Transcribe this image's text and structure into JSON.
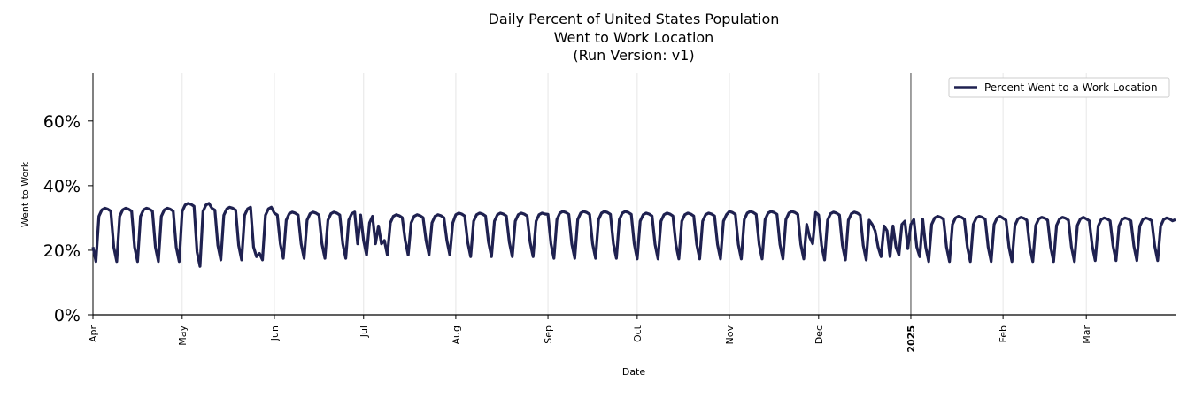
{
  "chart_data": {
    "type": "line",
    "title_lines": [
      "Daily Percent of United States Population",
      "Went to Work Location",
      "(Run Version: v1)"
    ],
    "xlabel": "Date",
    "ylabel": "Went to Work",
    "ylim": [
      0,
      75
    ],
    "yticks": [
      0,
      20,
      40,
      60
    ],
    "ytick_labels": [
      "0%",
      "20%",
      "40%",
      "60%"
    ],
    "x_range_days": [
      0,
      364
    ],
    "month_ticks": [
      {
        "label": "Apr",
        "day": 0,
        "bold": false
      },
      {
        "label": "May",
        "day": 30,
        "bold": false
      },
      {
        "label": "Jun",
        "day": 61,
        "bold": false
      },
      {
        "label": "Jul",
        "day": 91,
        "bold": false
      },
      {
        "label": "Aug",
        "day": 122,
        "bold": false
      },
      {
        "label": "Sep",
        "day": 153,
        "bold": false
      },
      {
        "label": "Oct",
        "day": 183,
        "bold": false
      },
      {
        "label": "Nov",
        "day": 214,
        "bold": false
      },
      {
        "label": "Dec",
        "day": 244,
        "bold": false
      },
      {
        "label": "2025",
        "day": 275,
        "bold": true
      },
      {
        "label": "Feb",
        "day": 306,
        "bold": false
      },
      {
        "label": "Mar",
        "day": 334,
        "bold": false
      }
    ],
    "vline_day": 275,
    "grid": "vertical",
    "legend": {
      "position": "top-right",
      "label": "Percent Went to a Work Location"
    },
    "series": [
      {
        "name": "Percent Went to a Work Location",
        "color": "#1f2150",
        "weekday_levels": [
          {
            "from_day": 0,
            "value": 33.0
          },
          {
            "from_day": 30,
            "value": 34.5
          },
          {
            "from_day": 40,
            "value": 33.3
          },
          {
            "from_day": 61,
            "value": 31.8
          },
          {
            "from_day": 91,
            "value": 31.0
          },
          {
            "from_day": 122,
            "value": 31.5
          },
          {
            "from_day": 153,
            "value": 32.0
          },
          {
            "from_day": 183,
            "value": 31.5
          },
          {
            "from_day": 214,
            "value": 32.0
          },
          {
            "from_day": 244,
            "value": 31.8
          },
          {
            "from_day": 275,
            "value": 30.5
          },
          {
            "from_day": 306,
            "value": 30.2
          },
          {
            "from_day": 334,
            "value": 30.0
          }
        ],
        "weekend_min": [
          {
            "from_day": 0,
            "value": 16.5
          },
          {
            "from_day": 30,
            "value": 15.0
          },
          {
            "from_day": 40,
            "value": 17.0
          },
          {
            "from_day": 61,
            "value": 17.5
          },
          {
            "from_day": 91,
            "value": 18.5
          },
          {
            "from_day": 122,
            "value": 18.0
          },
          {
            "from_day": 153,
            "value": 17.5
          },
          {
            "from_day": 183,
            "value": 17.3
          },
          {
            "from_day": 244,
            "value": 17.0
          },
          {
            "from_day": 275,
            "value": 16.5
          },
          {
            "from_day": 306,
            "value": 16.5
          },
          {
            "from_day": 334,
            "value": 16.8
          }
        ],
        "anomalies": [
          {
            "day": 54,
            "value": 21.0
          },
          {
            "day": 55,
            "value": 18.0
          },
          {
            "day": 56,
            "value": 19.0
          },
          {
            "day": 89,
            "value": 22.0
          },
          {
            "day": 95,
            "value": 22.0
          },
          {
            "day": 96,
            "value": 27.5
          },
          {
            "day": 97,
            "value": 22.0
          },
          {
            "day": 240,
            "value": 28.0
          },
          {
            "day": 241,
            "value": 24.0
          },
          {
            "day": 242,
            "value": 22.0
          },
          {
            "day": 262,
            "value": 28.0
          },
          {
            "day": 263,
            "value": 26.0
          },
          {
            "day": 264,
            "value": 21.0
          },
          {
            "day": 265,
            "value": 18.0
          },
          {
            "day": 266,
            "value": 27.5
          },
          {
            "day": 267,
            "value": 26.0
          },
          {
            "day": 268,
            "value": 18.0
          },
          {
            "day": 269,
            "value": 27.5
          },
          {
            "day": 270,
            "value": 21.0
          },
          {
            "day": 271,
            "value": 18.5
          },
          {
            "day": 272,
            "value": 28.0
          },
          {
            "day": 273,
            "value": 29.0
          },
          {
            "day": 274,
            "value": 20.5
          },
          {
            "day": 275,
            "value": 28.0
          },
          {
            "day": 276,
            "value": 29.5
          },
          {
            "day": 277,
            "value": 21.0
          },
          {
            "day": 278,
            "value": 18.0
          }
        ],
        "final_value": 29.5
      }
    ]
  }
}
